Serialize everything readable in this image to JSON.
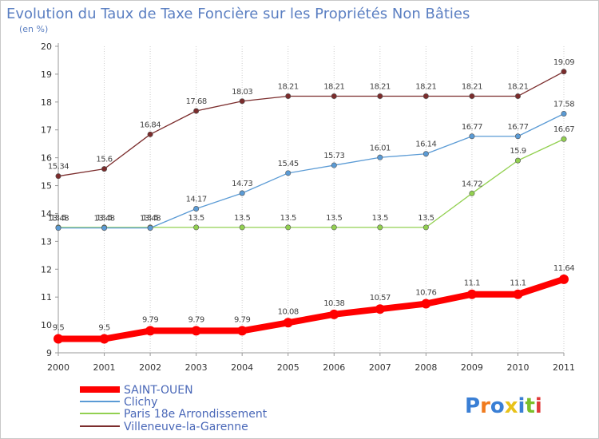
{
  "chart_data": {
    "type": "line",
    "title": "Evolution du Taux de Taxe Foncière sur les Propriétés Non Bâties",
    "subtitle": "(en %)",
    "x": [
      "2000",
      "2001",
      "2002",
      "2003",
      "2004",
      "2005",
      "2006",
      "2007",
      "2008",
      "2009",
      "2010",
      "2011"
    ],
    "yticks": [
      "9",
      "10",
      "11",
      "12",
      "13",
      "14",
      "15",
      "16",
      "17",
      "18",
      "19",
      "20"
    ],
    "ylim": [
      9,
      20
    ],
    "grid": "vertical-dotted",
    "legend_position": "bottom-left",
    "series": [
      {
        "name": "SAINT-OUEN",
        "color": "#ff0000",
        "values": [
          9.5,
          9.5,
          9.79,
          9.79,
          9.79,
          10.08,
          10.38,
          10.57,
          10.76,
          11.1,
          11.1,
          11.64
        ],
        "labels": [
          "9.5",
          "9.5",
          "9.79",
          "9.79",
          "9.79",
          "10.08",
          "10.38",
          "10.57",
          "10.76",
          "11.1",
          "11.1",
          "11.64"
        ]
      },
      {
        "name": "Clichy",
        "color": "#5b9bd5",
        "values": [
          13.48,
          13.48,
          13.48,
          14.17,
          14.73,
          15.45,
          15.73,
          16.01,
          16.14,
          16.77,
          16.77,
          17.58
        ],
        "labels": [
          "13.48",
          "13.48",
          "13.48",
          "14.17",
          "14.73",
          "15.45",
          "15.73",
          "16.01",
          "16.14",
          "16.77",
          "16.77",
          "17.58"
        ]
      },
      {
        "name": "Paris 18e  Arrondissement",
        "color": "#92d050",
        "values": [
          13.5,
          13.5,
          13.5,
          13.5,
          13.5,
          13.5,
          13.5,
          13.5,
          13.5,
          14.72,
          15.9,
          16.67
        ],
        "labels": [
          "13.5",
          "13.5",
          "13.5",
          "13.5",
          "13.5",
          "13.5",
          "13.5",
          "13.5",
          "13.5",
          "14.72",
          "15.9",
          "16.67"
        ]
      },
      {
        "name": "Villeneuve-la-Garenne",
        "color": "#7b2c2c",
        "values": [
          15.34,
          15.6,
          16.84,
          17.68,
          18.03,
          18.21,
          18.21,
          18.21,
          18.21,
          18.21,
          18.21,
          19.09
        ],
        "labels": [
          "15.34",
          "15.6",
          "16.84",
          "17.68",
          "18.03",
          "18.21",
          "18.21",
          "18.21",
          "18.21",
          "18.21",
          "18.21",
          "19.09"
        ]
      }
    ]
  },
  "branding": {
    "logo_text": "Proxiti",
    "letter_colors": [
      "#3a7fd5",
      "#f07b1e",
      "#3a7fd5",
      "#e8c21a",
      "#3a7fd5",
      "#7bbf2a",
      "#e03a3a"
    ]
  }
}
